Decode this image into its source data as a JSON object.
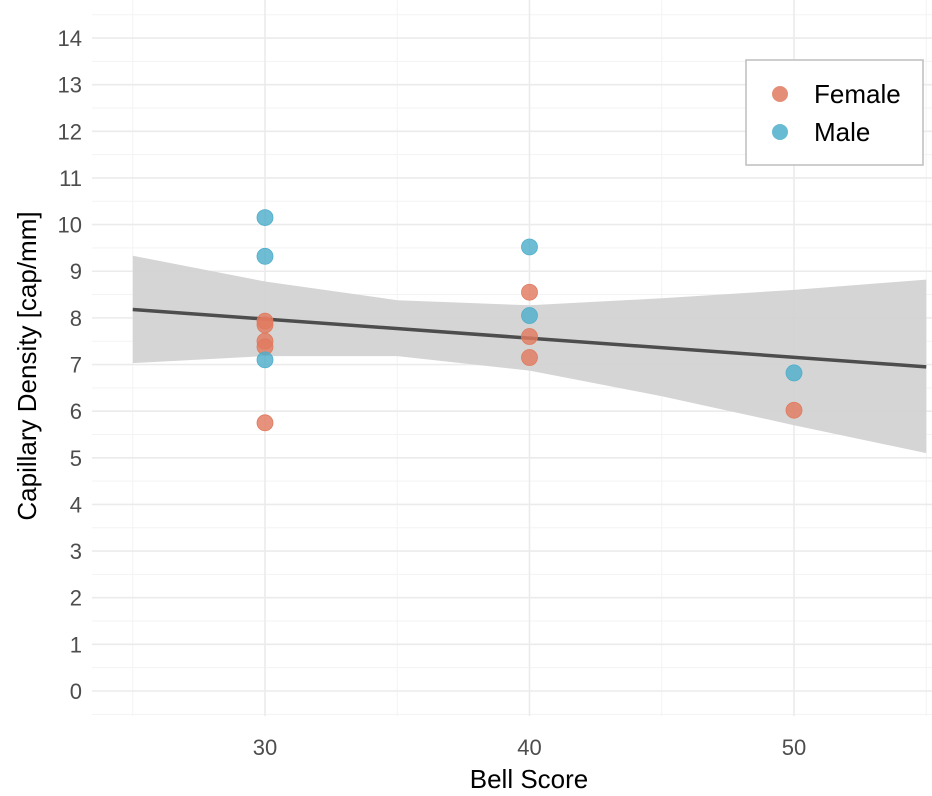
{
  "chart_data": {
    "type": "scatter",
    "title": "",
    "xlabel": "Bell Score",
    "ylabel": "Capillary Density [cap/mm]",
    "xlim": [
      22.5,
      55
    ],
    "ylim": [
      -0.6,
      14.6
    ],
    "x_ticks": [
      30,
      40,
      50
    ],
    "y_ticks": [
      0,
      1,
      2,
      3,
      4,
      5,
      6,
      7,
      8,
      9,
      10,
      11,
      12,
      13,
      14
    ],
    "grid": true,
    "legend_position": "top-right",
    "series": [
      {
        "name": "Female",
        "color": "#E07A5F",
        "points": [
          {
            "x": 30,
            "y": 7.93
          },
          {
            "x": 30,
            "y": 7.85
          },
          {
            "x": 30,
            "y": 7.5
          },
          {
            "x": 30,
            "y": 7.38
          },
          {
            "x": 30,
            "y": 5.75
          },
          {
            "x": 40,
            "y": 8.55
          },
          {
            "x": 40,
            "y": 7.6
          },
          {
            "x": 40,
            "y": 7.15
          },
          {
            "x": 50,
            "y": 6.02
          }
        ]
      },
      {
        "name": "Male",
        "color": "#4FAECB",
        "points": [
          {
            "x": 30,
            "y": 10.15
          },
          {
            "x": 30,
            "y": 9.32
          },
          {
            "x": 30,
            "y": 7.1
          },
          {
            "x": 40,
            "y": 9.52
          },
          {
            "x": 40,
            "y": 8.05
          },
          {
            "x": 50,
            "y": 6.82
          }
        ]
      }
    ],
    "trend_line": {
      "x": [
        25,
        55
      ],
      "y": [
        8.18,
        6.95
      ],
      "color": "#4d4d4d"
    },
    "confidence_band": {
      "x": [
        25,
        30,
        35,
        40,
        45,
        50,
        55
      ],
      "upper": [
        9.33,
        8.78,
        8.38,
        8.27,
        8.42,
        8.6,
        8.82
      ],
      "lower": [
        7.03,
        7.18,
        7.18,
        6.87,
        6.32,
        5.7,
        5.1
      ],
      "color": "#d3d3d3"
    }
  }
}
